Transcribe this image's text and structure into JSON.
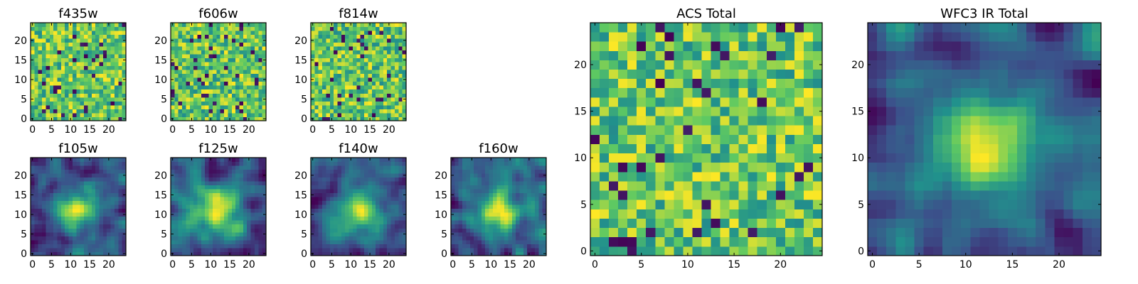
{
  "figure": {
    "colormap": "viridis",
    "colormap_stops": [
      "#440154",
      "#3b528b",
      "#21918c",
      "#5ec962",
      "#fde725"
    ],
    "axes_color": "#000000",
    "background": "#ffffff"
  },
  "chart_data": [
    {
      "id": "f435w",
      "type": "heatmap",
      "title": "f435w",
      "nx": 25,
      "ny": 25,
      "xlim": [
        -0.5,
        24.5
      ],
      "ylim": [
        -0.5,
        24.5
      ],
      "xticks": [
        0,
        5,
        10,
        15,
        20
      ],
      "yticks": [
        0,
        5,
        10,
        15,
        20
      ],
      "xtick_labels": [
        "0",
        "5",
        "10",
        "15",
        "20"
      ],
      "ytick_labels": [
        "0",
        "5",
        "10",
        "15",
        "20"
      ],
      "pattern": "noise",
      "seed": 11
    },
    {
      "id": "f606w",
      "type": "heatmap",
      "title": "f606w",
      "nx": 25,
      "ny": 25,
      "xlim": [
        -0.5,
        24.5
      ],
      "ylim": [
        -0.5,
        24.5
      ],
      "xticks": [
        0,
        5,
        10,
        15,
        20
      ],
      "yticks": [
        0,
        5,
        10,
        15,
        20
      ],
      "xtick_labels": [
        "0",
        "5",
        "10",
        "15",
        "20"
      ],
      "ytick_labels": [
        "0",
        "5",
        "10",
        "15",
        "20"
      ],
      "pattern": "noise",
      "seed": 23
    },
    {
      "id": "f814w",
      "type": "heatmap",
      "title": "f814w",
      "nx": 25,
      "ny": 25,
      "xlim": [
        -0.5,
        24.5
      ],
      "ylim": [
        -0.5,
        24.5
      ],
      "xticks": [
        0,
        5,
        10,
        15,
        20
      ],
      "yticks": [
        0,
        5,
        10,
        15,
        20
      ],
      "xtick_labels": [
        "0",
        "5",
        "10",
        "15",
        "20"
      ],
      "ytick_labels": [
        "0",
        "5",
        "10",
        "15",
        "20"
      ],
      "pattern": "noise",
      "seed": 37
    },
    {
      "id": "f105w",
      "type": "heatmap",
      "title": "f105w",
      "nx": 25,
      "ny": 25,
      "xlim": [
        -0.5,
        24.5
      ],
      "ylim": [
        -0.5,
        24.5
      ],
      "xticks": [
        0,
        5,
        10,
        15,
        20
      ],
      "yticks": [
        0,
        5,
        10,
        15,
        20
      ],
      "xtick_labels": [
        "0",
        "5",
        "10",
        "15",
        "20"
      ],
      "ytick_labels": [
        "0",
        "5",
        "10",
        "15",
        "20"
      ],
      "pattern": "smooth",
      "seed": 41
    },
    {
      "id": "f125w",
      "type": "heatmap",
      "title": "f125w",
      "nx": 25,
      "ny": 25,
      "xlim": [
        -0.5,
        24.5
      ],
      "ylim": [
        -0.5,
        24.5
      ],
      "xticks": [
        0,
        5,
        10,
        15,
        20
      ],
      "yticks": [
        0,
        5,
        10,
        15,
        20
      ],
      "xtick_labels": [
        "0",
        "5",
        "10",
        "15",
        "20"
      ],
      "ytick_labels": [
        "0",
        "5",
        "10",
        "15",
        "20"
      ],
      "pattern": "smooth",
      "seed": 53
    },
    {
      "id": "f140w",
      "type": "heatmap",
      "title": "f140w",
      "nx": 25,
      "ny": 25,
      "xlim": [
        -0.5,
        24.5
      ],
      "ylim": [
        -0.5,
        24.5
      ],
      "xticks": [
        0,
        5,
        10,
        15,
        20
      ],
      "yticks": [
        0,
        5,
        10,
        15,
        20
      ],
      "xtick_labels": [
        "0",
        "5",
        "10",
        "15",
        "20"
      ],
      "ytick_labels": [
        "0",
        "5",
        "10",
        "15",
        "20"
      ],
      "pattern": "smooth",
      "seed": 67
    },
    {
      "id": "f160w",
      "type": "heatmap",
      "title": "f160w",
      "nx": 25,
      "ny": 25,
      "xlim": [
        -0.5,
        24.5
      ],
      "ylim": [
        -0.5,
        24.5
      ],
      "xticks": [
        0,
        5,
        10,
        15,
        20
      ],
      "yticks": [
        0,
        5,
        10,
        15,
        20
      ],
      "xtick_labels": [
        "0",
        "5",
        "10",
        "15",
        "20"
      ],
      "ytick_labels": [
        "0",
        "5",
        "10",
        "15",
        "20"
      ],
      "pattern": "smooth",
      "seed": 79
    },
    {
      "id": "acs-total",
      "type": "heatmap",
      "title": "ACS Total",
      "nx": 25,
      "ny": 25,
      "xlim": [
        -0.5,
        24.5
      ],
      "ylim": [
        -0.5,
        24.5
      ],
      "xticks": [
        0,
        5,
        10,
        15,
        20
      ],
      "yticks": [
        0,
        5,
        10,
        15,
        20
      ],
      "xtick_labels": [
        "0",
        "5",
        "10",
        "15",
        "20"
      ],
      "ytick_labels": [
        "0",
        "5",
        "10",
        "15",
        "20"
      ],
      "pattern": "noise",
      "seed": 97
    },
    {
      "id": "wfc3-ir-total",
      "type": "heatmap",
      "title": "WFC3 IR Total",
      "nx": 25,
      "ny": 25,
      "xlim": [
        -0.5,
        24.5
      ],
      "ylim": [
        -0.5,
        24.5
      ],
      "xticks": [
        0,
        5,
        10,
        15,
        20
      ],
      "yticks": [
        0,
        5,
        10,
        15,
        20
      ],
      "xtick_labels": [
        "0",
        "5",
        "10",
        "15",
        "20"
      ],
      "ytick_labels": [
        "0",
        "5",
        "10",
        "15",
        "20"
      ],
      "pattern": "smooth",
      "seed": 113
    }
  ]
}
